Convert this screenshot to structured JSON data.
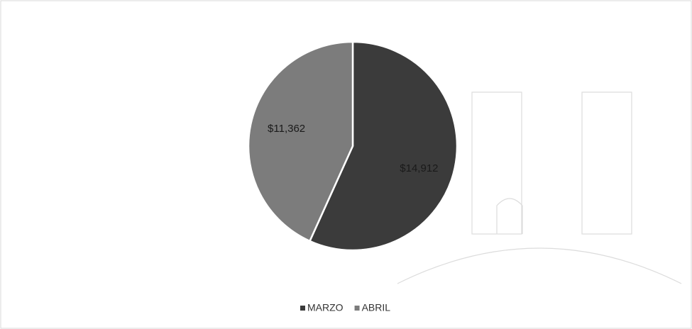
{
  "chart_data": {
    "type": "pie",
    "categories": [
      "MARZO",
      "ABRIL"
    ],
    "values": [
      14912,
      11362
    ],
    "value_labels": [
      "$14,912",
      "$11,362"
    ],
    "colors": [
      "#3b3b3b",
      "#7c7c7c"
    ],
    "legend": "bottom"
  }
}
